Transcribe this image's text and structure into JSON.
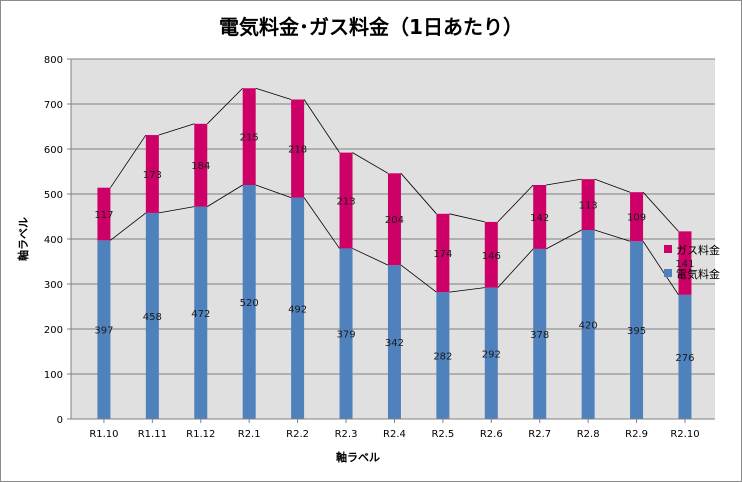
{
  "chart_data": {
    "type": "bar",
    "stacked": true,
    "title": "電気料金･ガス料金（1日あたり）",
    "xlabel": "軸ラベル",
    "ylabel": "軸ラベル",
    "ylim": [
      0,
      800
    ],
    "yticks": [
      0,
      100,
      200,
      300,
      400,
      500,
      600,
      700,
      800
    ],
    "grid": true,
    "legend_position": "right",
    "categories": [
      "R1.10",
      "R1.11",
      "R1.12",
      "R2.1",
      "R2.2",
      "R2.3",
      "R2.4",
      "R2.5",
      "R2.6",
      "R2.7",
      "R2.8",
      "R2.9",
      "R2.10"
    ],
    "series": [
      {
        "name": "電気料金",
        "color": "#4f81bd",
        "values": [
          397,
          458,
          472,
          520,
          492,
          379,
          342,
          282,
          292,
          378,
          420,
          395,
          276
        ]
      },
      {
        "name": "ガス料金",
        "color": "#cc0066",
        "values": [
          117,
          173,
          184,
          215,
          218,
          213,
          204,
          174,
          146,
          142,
          113,
          109,
          141
        ]
      }
    ],
    "series_lines": true,
    "colors": {
      "plot_bg": "#e0e0e0",
      "grid": "#808080",
      "series_line": "#000000"
    }
  }
}
